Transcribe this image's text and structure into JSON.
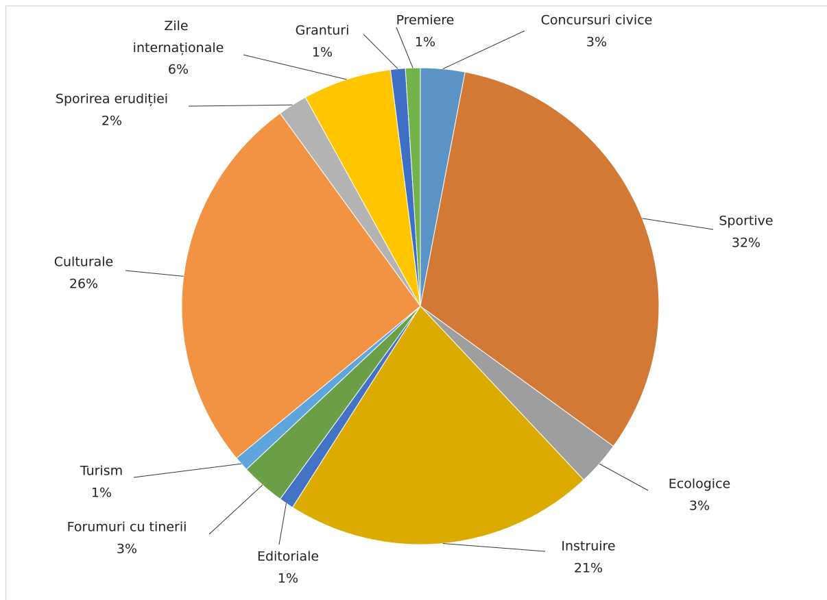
{
  "chart_data": {
    "type": "pie",
    "categories": [
      "Concursuri civice",
      "Sportive",
      "Ecologice",
      "Instruire",
      "Editoriale",
      "Forumuri cu tinerii",
      "Turism",
      "Culturale",
      "Sporirea erudiției",
      "Zile internaționale",
      "Granturi",
      "Premiere"
    ],
    "values": [
      3,
      32,
      3,
      21,
      1,
      3,
      1,
      26,
      2,
      6,
      1,
      1
    ],
    "value_labels": [
      "3%",
      "32%",
      "3%",
      "21%",
      "1%",
      "3%",
      "1%",
      "26%",
      "2%",
      "6%",
      "1%",
      "1%"
    ],
    "colors": [
      "#5b93c5",
      "#d27935",
      "#9e9e9e",
      "#dbab00",
      "#4472c4",
      "#6a9f47",
      "#5fa5dd",
      "#f19343",
      "#b3b3b3",
      "#ffc600",
      "#3e6fc3",
      "#72b34c"
    ]
  }
}
